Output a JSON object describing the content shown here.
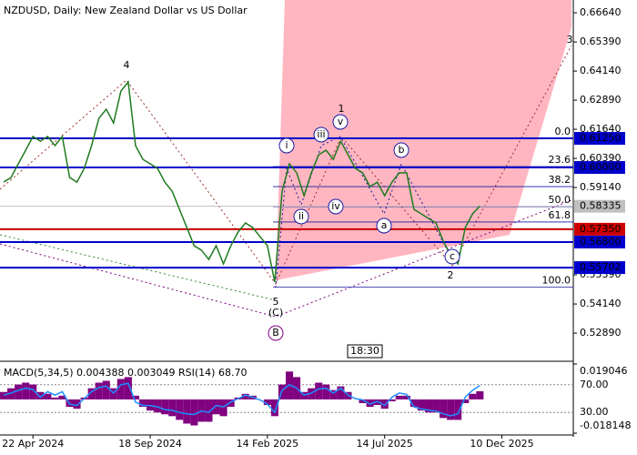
{
  "chart_data": {
    "type": "line",
    "title": "NZDUSD, Daily:  New Zealand Dollar vs US Dollar",
    "subtitle": "MACD(5,34,5) 0.004388 0.003049 RSI(14) 68.70",
    "time_label": "18:30",
    "categories": [
      null,
      null,
      null,
      null,
      "22 Apr 2024",
      null,
      null,
      null,
      null,
      null,
      null,
      null,
      null,
      null,
      null,
      null,
      null,
      null,
      null,
      null,
      "18 Sep 2024",
      null,
      null,
      null,
      null,
      null,
      null,
      null,
      null,
      null,
      null,
      null,
      null,
      null,
      null,
      null,
      "14 Feb 2025",
      null,
      null,
      null,
      null,
      null,
      null,
      null,
      null,
      null,
      null,
      null,
      null,
      null,
      null,
      null,
      "14 Jul 2025",
      null,
      null,
      null,
      null,
      null,
      null,
      null,
      null,
      null,
      null,
      null,
      null,
      null,
      null,
      null,
      "10 Dec 2025",
      null,
      null,
      null,
      null,
      null,
      null,
      null,
      null,
      null
    ],
    "series": [
      {
        "name": "NZDUSD",
        "color": "#1f7a1f",
        "values": [
          0.5937,
          0.5957,
          0.6016,
          0.6074,
          0.6133,
          0.6113,
          0.6133,
          0.6094,
          0.6133,
          0.5957,
          0.5937,
          0.5996,
          0.6094,
          0.6211,
          0.625,
          0.6191,
          0.6328,
          0.6367,
          0.6094,
          0.6035,
          0.6016,
          0.5996,
          0.5937,
          0.5898,
          0.582,
          0.5742,
          0.5664,
          0.5645,
          0.5605,
          0.5664,
          0.5586,
          0.5664,
          0.5723,
          0.5762,
          0.5742,
          0.5703,
          0.5664,
          0.5508,
          0.5898,
          0.6016,
          0.5977,
          0.5879,
          0.5977,
          0.6055,
          0.6074,
          0.6035,
          0.6113,
          0.6055,
          0.5996,
          0.5977,
          0.5918,
          0.5937,
          0.5879,
          0.5937,
          0.5977,
          0.5977,
          0.582,
          0.5801,
          0.5781,
          0.5762,
          0.5684,
          0.5625,
          0.5586,
          0.5742,
          0.5801,
          0.5834,
          null,
          null,
          null,
          null,
          null,
          null,
          null,
          null,
          null,
          null,
          null,
          null
        ]
      }
    ],
    "ylim": [
      0.5172,
      0.6719
    ],
    "yticks": [
      {
        "value": 0.6664,
        "label": "0.66640"
      },
      {
        "value": 0.6539,
        "label": "0.65390"
      },
      {
        "value": 0.6414,
        "label": "0.64140"
      },
      {
        "value": 0.6289,
        "label": "0.62890"
      },
      {
        "value": 0.6164,
        "label": "0.61640"
      },
      {
        "value": 0.6039,
        "label": "0.60390"
      },
      {
        "value": 0.5914,
        "label": "0.59140"
      },
      {
        "value": 0.5539,
        "label": "0.55390"
      },
      {
        "value": 0.5414,
        "label": "0.54140"
      },
      {
        "value": 0.5289,
        "label": "0.52890"
      }
    ],
    "levels": [
      {
        "value": 0.6125,
        "label": "0.61250",
        "color": "#0000cc"
      },
      {
        "value": 0.6,
        "label": "0.60000",
        "color": "#0000cc"
      },
      {
        "value": 0.58335,
        "label": "0.58335",
        "color": "#c0c0c0"
      },
      {
        "value": 0.5735,
        "label": "0.57350",
        "color": "#cc0000"
      },
      {
        "value": 0.568,
        "label": "0.56800",
        "color": "#0000cc"
      },
      {
        "value": 0.55702,
        "label": "0.55702",
        "color": "#0000cc"
      }
    ],
    "fib": [
      {
        "value": 0.6125,
        "label": "0.0"
      },
      {
        "value": 0.6004,
        "label": "23.6"
      },
      {
        "value": 0.5918,
        "label": "38.2"
      },
      {
        "value": 0.5832,
        "label": "50.0"
      },
      {
        "value": 0.5766,
        "label": "61.8"
      },
      {
        "value": 0.5486,
        "label": "100.0"
      }
    ],
    "annotations": [
      {
        "text": "4",
        "color": "#a0302a"
      },
      {
        "text": "1",
        "color": "#a0302a"
      },
      {
        "text": "2",
        "color": "#a0302a"
      },
      {
        "text": "3",
        "color": "#a0302a"
      },
      {
        "text": "5",
        "color": "#a0302a"
      },
      {
        "text": "(C)",
        "color": "#2e8b2e"
      },
      {
        "text": "B",
        "color": "#800080",
        "circled": true
      },
      {
        "text": "i",
        "color": "#1a1aa0",
        "circled": true
      },
      {
        "text": "ii",
        "color": "#1a1aa0",
        "circled": true
      },
      {
        "text": "iii",
        "color": "#1a1aa0",
        "circled": true
      },
      {
        "text": "iv",
        "color": "#1a1aa0",
        "circled": true
      },
      {
        "text": "v",
        "color": "#1a1aa0",
        "circled": true
      },
      {
        "text": "a",
        "color": "#1a1aa0",
        "circled": true
      },
      {
        "text": "b",
        "color": "#1a1aa0",
        "circled": true
      },
      {
        "text": "c",
        "color": "#1a1aa0",
        "circled": true
      }
    ],
    "macd": {
      "color": "#800080",
      "ylim": [
        -0.018148,
        0.019046
      ],
      "yticks": [
        0.019046,
        -0.018148
      ],
      "values": [
        0.004,
        0.006,
        0.008,
        0.009,
        0.008,
        0.004,
        0.003,
        0.001,
        0.002,
        -0.004,
        -0.005,
        0.001,
        0.006,
        0.009,
        0.01,
        0.006,
        0.011,
        0.012,
        0.002,
        -0.004,
        -0.006,
        -0.007,
        -0.008,
        -0.009,
        -0.011,
        -0.013,
        -0.014,
        -0.012,
        -0.012,
        -0.008,
        -0.009,
        -0.004,
        0.001,
        0.003,
        0.002,
        0,
        -0.003,
        -0.009,
        0.008,
        0.015,
        0.012,
        0.004,
        0.006,
        0.009,
        0.008,
        0.005,
        0.007,
        0.004,
        0,
        -0.002,
        -0.004,
        -0.003,
        -0.005,
        -0.001,
        0.002,
        0.002,
        -0.004,
        -0.006,
        -0.007,
        -0.007,
        -0.01,
        -0.011,
        -0.011,
        -0.002,
        0.003,
        0.004388,
        null,
        null,
        null,
        null,
        null,
        null,
        null,
        null,
        null,
        null,
        null,
        null
      ]
    },
    "rsi": {
      "color": "#1e90ff",
      "ylim": [
        0,
        100
      ],
      "yticks": [
        {
          "value": 70,
          "label": "70.00"
        },
        {
          "value": 30,
          "label": "30.00"
        }
      ],
      "values": [
        55,
        58,
        62,
        65,
        63,
        52,
        60,
        55,
        60,
        42,
        40,
        50,
        60,
        66,
        68,
        58,
        70,
        72,
        45,
        40,
        40,
        38,
        34,
        33,
        30,
        28,
        27,
        32,
        30,
        40,
        38,
        45,
        50,
        55,
        52,
        48,
        42,
        30,
        62,
        70,
        65,
        55,
        58,
        64,
        65,
        58,
        65,
        55,
        50,
        48,
        42,
        46,
        40,
        52,
        58,
        56,
        38,
        35,
        33,
        32,
        28,
        25,
        28,
        52,
        62,
        68.7,
        null,
        null,
        null,
        null,
        null,
        null,
        null,
        null,
        null,
        null,
        null,
        null
      ]
    }
  }
}
